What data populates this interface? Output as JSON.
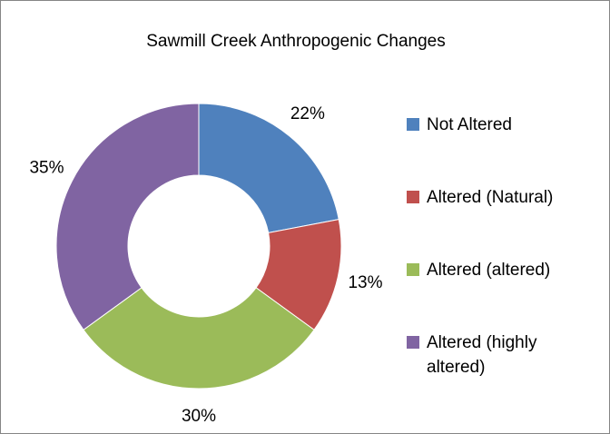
{
  "chart_data": {
    "type": "doughnut",
    "title": "Sawmill Creek Anthropogenic Changes",
    "categories": [
      "Not Altered",
      "Altered (Natural)",
      "Altered (altered)",
      "Altered (highly altered)"
    ],
    "values": [
      22,
      13,
      30,
      35
    ],
    "value_labels": [
      "22%",
      "13%",
      "30%",
      "35%"
    ],
    "colors": [
      "#4f81bd",
      "#c0504d",
      "#9bbb59",
      "#8064a2"
    ],
    "legend": "right"
  }
}
